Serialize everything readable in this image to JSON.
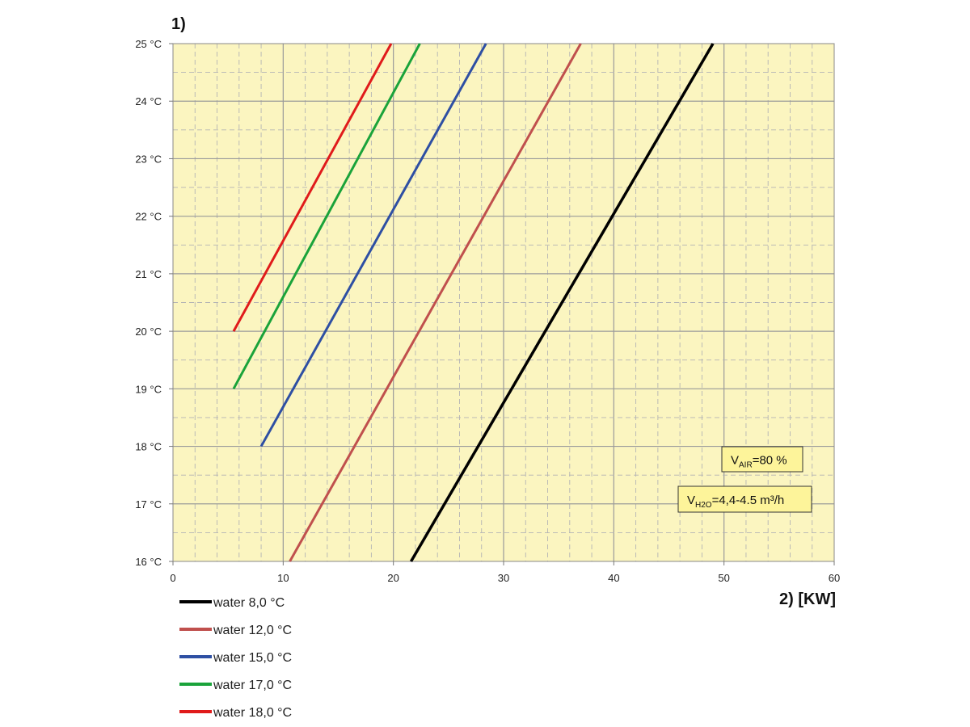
{
  "chart_data": {
    "type": "line",
    "title": "",
    "ylabel": "1)",
    "xlabel": "2)  [KW]",
    "xlim": [
      0,
      60
    ],
    "ylim": [
      16,
      25
    ],
    "x_ticks": [
      "0",
      "10",
      "20",
      "30",
      "40",
      "50",
      "60"
    ],
    "y_ticks": [
      "16 °C",
      "17 °C",
      "18 °C",
      "19 °C",
      "20 °C",
      "21 °C",
      "22 °C",
      "23 °C",
      "24 °C",
      "25 °C"
    ],
    "grid": true,
    "legend_position": "bottom-left",
    "background_color": "#fbf5c0",
    "series": [
      {
        "name": "water 8,0 °C",
        "color": "#000000",
        "points": [
          [
            21.6,
            16
          ],
          [
            49.0,
            25
          ]
        ]
      },
      {
        "name": "water 12,0 °C",
        "color": "#c0504d",
        "points": [
          [
            10.6,
            16
          ],
          [
            37.0,
            25
          ]
        ]
      },
      {
        "name": "water 15,0 °C",
        "color": "#2e4fa3",
        "points": [
          [
            8.0,
            18
          ],
          [
            28.4,
            25
          ]
        ]
      },
      {
        "name": "water 17,0 °C",
        "color": "#1aa33a",
        "points": [
          [
            5.5,
            19
          ],
          [
            22.4,
            25
          ]
        ]
      },
      {
        "name": "water 18,0 °C",
        "color": "#e01b1b",
        "points": [
          [
            5.5,
            20
          ],
          [
            19.8,
            25
          ]
        ]
      }
    ],
    "annotations": [
      {
        "main": "V",
        "sub": "AIR",
        "rest": "=80 %"
      },
      {
        "main": "V",
        "sub": "H2O",
        "rest": "=4,4-4.5 m³/h"
      }
    ]
  }
}
